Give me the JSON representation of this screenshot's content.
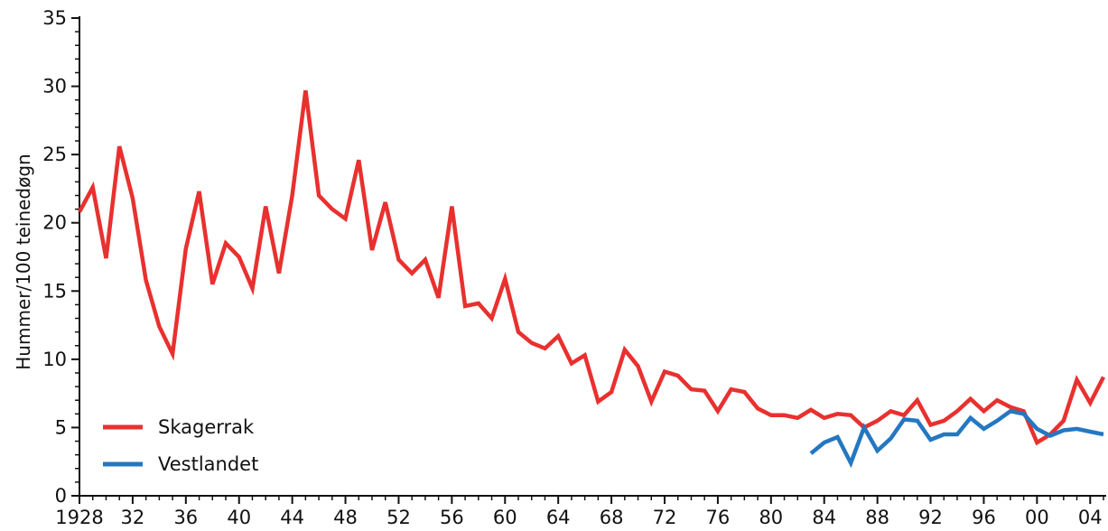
{
  "chart_data": {
    "type": "line",
    "ylabel": "Hummer/100 teinedøgn",
    "xlabel": "",
    "ylim": [
      0,
      35
    ],
    "xlim": [
      1928,
      2005
    ],
    "y_ticks": [
      0,
      5,
      10,
      15,
      20,
      25,
      30,
      35
    ],
    "x_ticks": [
      {
        "value": 1928,
        "label": "1928"
      },
      {
        "value": 1932,
        "label": "32"
      },
      {
        "value": 1936,
        "label": "36"
      },
      {
        "value": 1940,
        "label": "40"
      },
      {
        "value": 1944,
        "label": "44"
      },
      {
        "value": 1948,
        "label": "48"
      },
      {
        "value": 1952,
        "label": "52"
      },
      {
        "value": 1956,
        "label": "56"
      },
      {
        "value": 1960,
        "label": "60"
      },
      {
        "value": 1964,
        "label": "64"
      },
      {
        "value": 1968,
        "label": "68"
      },
      {
        "value": 1972,
        "label": "72"
      },
      {
        "value": 1976,
        "label": "76"
      },
      {
        "value": 1980,
        "label": "80"
      },
      {
        "value": 1984,
        "label": "84"
      },
      {
        "value": 1988,
        "label": "88"
      },
      {
        "value": 1992,
        "label": "92"
      },
      {
        "value": 1996,
        "label": "96"
      },
      {
        "value": 2000,
        "label": "00"
      },
      {
        "value": 2004,
        "label": "04"
      }
    ],
    "legend_position": "bottom-left",
    "grid": false,
    "series": [
      {
        "name": "Skagerrak",
        "color": "#e8312f",
        "x": [
          1928,
          1929,
          1930,
          1931,
          1932,
          1933,
          1934,
          1935,
          1936,
          1937,
          1938,
          1939,
          1940,
          1941,
          1942,
          1943,
          1944,
          1945,
          1946,
          1947,
          1948,
          1949,
          1950,
          1951,
          1952,
          1953,
          1954,
          1955,
          1956,
          1957,
          1958,
          1959,
          1960,
          1961,
          1962,
          1963,
          1964,
          1965,
          1966,
          1967,
          1968,
          1969,
          1970,
          1971,
          1972,
          1973,
          1974,
          1975,
          1976,
          1977,
          1978,
          1979,
          1980,
          1981,
          1982,
          1983,
          1984,
          1985,
          1986,
          1987,
          1988,
          1989,
          1990,
          1991,
          1992,
          1993,
          1994,
          1995,
          1996,
          1997,
          1998,
          1999,
          2000,
          2001,
          2002,
          2003,
          2004,
          2005
        ],
        "values": [
          20.8,
          22.6,
          17.4,
          25.6,
          21.8,
          15.8,
          12.4,
          10.4,
          18.1,
          22.3,
          15.5,
          18.5,
          17.5,
          15.2,
          21.2,
          16.3,
          22.0,
          29.7,
          22.0,
          21.0,
          20.3,
          24.6,
          18.0,
          21.5,
          17.3,
          16.3,
          17.3,
          14.5,
          21.2,
          13.9,
          14.1,
          13.0,
          15.9,
          12.0,
          11.2,
          10.8,
          11.7,
          9.7,
          10.3,
          6.9,
          7.6,
          10.7,
          9.5,
          6.9,
          9.1,
          8.8,
          7.8,
          7.7,
          6.2,
          7.8,
          7.6,
          6.4,
          5.9,
          5.9,
          5.7,
          6.3,
          5.7,
          6.0,
          5.9,
          5.0,
          5.5,
          6.2,
          5.9,
          7.0,
          5.2,
          5.5,
          6.2,
          7.1,
          6.2,
          7.0,
          6.5,
          6.2,
          3.9,
          4.5,
          5.5,
          8.5,
          6.8,
          8.7
        ]
      },
      {
        "name": "Vestlandet",
        "color": "#2477c1",
        "x": [
          1983,
          1984,
          1985,
          1986,
          1987,
          1988,
          1989,
          1990,
          1991,
          1992,
          1993,
          1994,
          1995,
          1996,
          1997,
          1998,
          1999,
          2000,
          2001,
          2002,
          2003,
          2004,
          2005
        ],
        "values": [
          3.1,
          3.9,
          4.3,
          2.4,
          5.0,
          3.3,
          4.2,
          5.6,
          5.5,
          4.1,
          4.5,
          4.5,
          5.7,
          4.9,
          5.5,
          6.2,
          6.0,
          4.9,
          4.4,
          4.8,
          4.9,
          4.7,
          4.5
        ]
      }
    ]
  }
}
